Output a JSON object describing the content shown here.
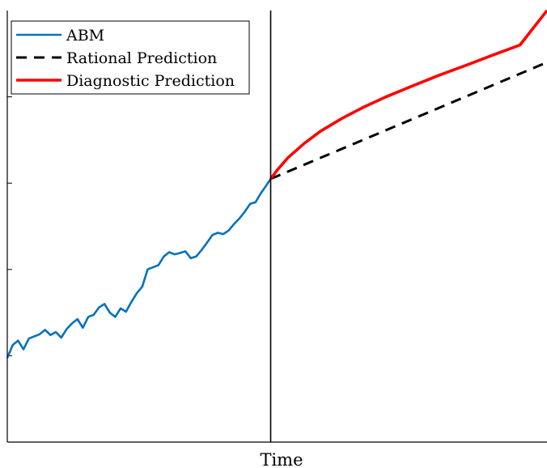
{
  "chart_data": {
    "type": "line",
    "title": "",
    "xlabel": "Time",
    "ylabel": "",
    "xlim": [
      0,
      100
    ],
    "ylim": [
      0,
      100
    ],
    "yticks": [
      20,
      40,
      60,
      80
    ],
    "grid": false,
    "legend_position": "top-left",
    "vline_x": 48.8,
    "series": [
      {
        "name": "ABM",
        "color": "#0072BD",
        "style": "solid",
        "x": [
          0,
          1,
          2,
          3,
          4,
          5,
          6,
          7,
          8,
          9,
          10,
          11,
          12,
          13,
          14,
          15,
          16,
          17,
          18,
          19,
          20,
          21,
          22,
          23,
          24,
          25,
          26,
          27,
          28,
          29,
          30,
          31,
          32,
          33,
          34,
          35,
          36,
          37,
          38,
          39,
          40,
          41,
          42,
          43,
          44,
          45,
          46,
          47,
          48,
          48.8
        ],
        "values": [
          19.5,
          22.5,
          23.5,
          21.5,
          24,
          24.5,
          25,
          26,
          24.8,
          25.5,
          24.2,
          26.2,
          27.5,
          28.5,
          26.5,
          29,
          29.5,
          31.2,
          32,
          30,
          29,
          31,
          30.2,
          32.5,
          34.5,
          36,
          40,
          40.5,
          41,
          43,
          44,
          43.5,
          43.8,
          44.2,
          42.6,
          43,
          44.5,
          46.2,
          48,
          48.5,
          48.2,
          49,
          50.5,
          51.8,
          53.4,
          55.2,
          55.6,
          57.7,
          59.5,
          61
        ]
      },
      {
        "name": "Rational Prediction",
        "color": "#000000",
        "style": "dashed",
        "x": [
          48.8,
          100
        ],
        "values": [
          61,
          88
        ]
      },
      {
        "name": "Diagnostic Prediction",
        "color": "#FF0000",
        "style": "solid",
        "x": [
          48.8,
          50,
          52,
          55,
          58,
          62,
          66,
          70,
          75,
          80,
          85,
          90,
          95,
          100
        ],
        "values": [
          61,
          63,
          65.9,
          69.2,
          72,
          75,
          77.6,
          79.9,
          82.5,
          85,
          87.3,
          89.7,
          92,
          100
        ]
      }
    ]
  }
}
